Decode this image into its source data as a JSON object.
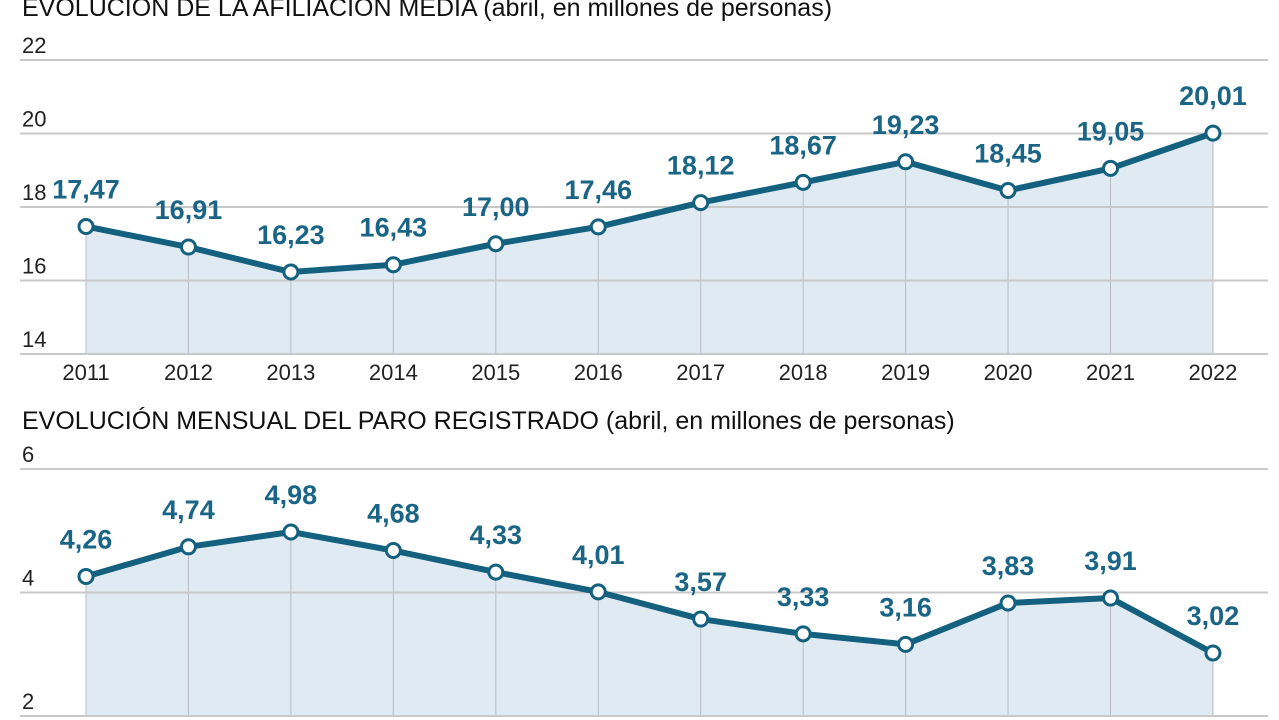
{
  "colors": {
    "line": "#14607f",
    "area": "#dfeaf3",
    "grid": "#c8c8c8",
    "label": "#1a6585"
  },
  "chart_data": [
    {
      "type": "area",
      "title": "EVOLUCIÓN DE LA AFILIACIÓN MEDIA",
      "subtitle": "(abril, en millones de personas)",
      "categories": [
        "2011",
        "2012",
        "2013",
        "2014",
        "2015",
        "2016",
        "2017",
        "2018",
        "2019",
        "2020",
        "2021",
        "2022"
      ],
      "values": [
        17.47,
        16.91,
        16.23,
        16.43,
        17.0,
        17.46,
        18.12,
        18.67,
        19.23,
        18.45,
        19.05,
        20.01
      ],
      "data_labels": [
        "17,47",
        "16,91",
        "16,23",
        "16,43",
        "17,00",
        "17,46",
        "18,12",
        "18,67",
        "19,23",
        "18,45",
        "19,05",
        "20,01"
      ],
      "yticks": [
        "14",
        "16",
        "18",
        "20",
        "22"
      ],
      "ylim": [
        14,
        22
      ],
      "grid": true
    },
    {
      "type": "area",
      "title": "EVOLUCIÓN MENSUAL DEL PARO REGISTRADO",
      "subtitle": "(abril, en millones de personas)",
      "categories": [
        "2011",
        "2012",
        "2013",
        "2014",
        "2015",
        "2016",
        "2017",
        "2018",
        "2019",
        "2020",
        "2021",
        "2022"
      ],
      "values": [
        4.26,
        4.74,
        4.98,
        4.68,
        4.33,
        4.01,
        3.57,
        3.33,
        3.16,
        3.83,
        3.91,
        3.02
      ],
      "data_labels": [
        "4,26",
        "4,74",
        "4,98",
        "4,68",
        "4,33",
        "4,01",
        "3,57",
        "3,33",
        "3,16",
        "3,83",
        "3,91",
        "3,02"
      ],
      "yticks": [
        "2",
        "4",
        "6"
      ],
      "ylim": [
        2,
        6
      ],
      "grid": true
    }
  ]
}
